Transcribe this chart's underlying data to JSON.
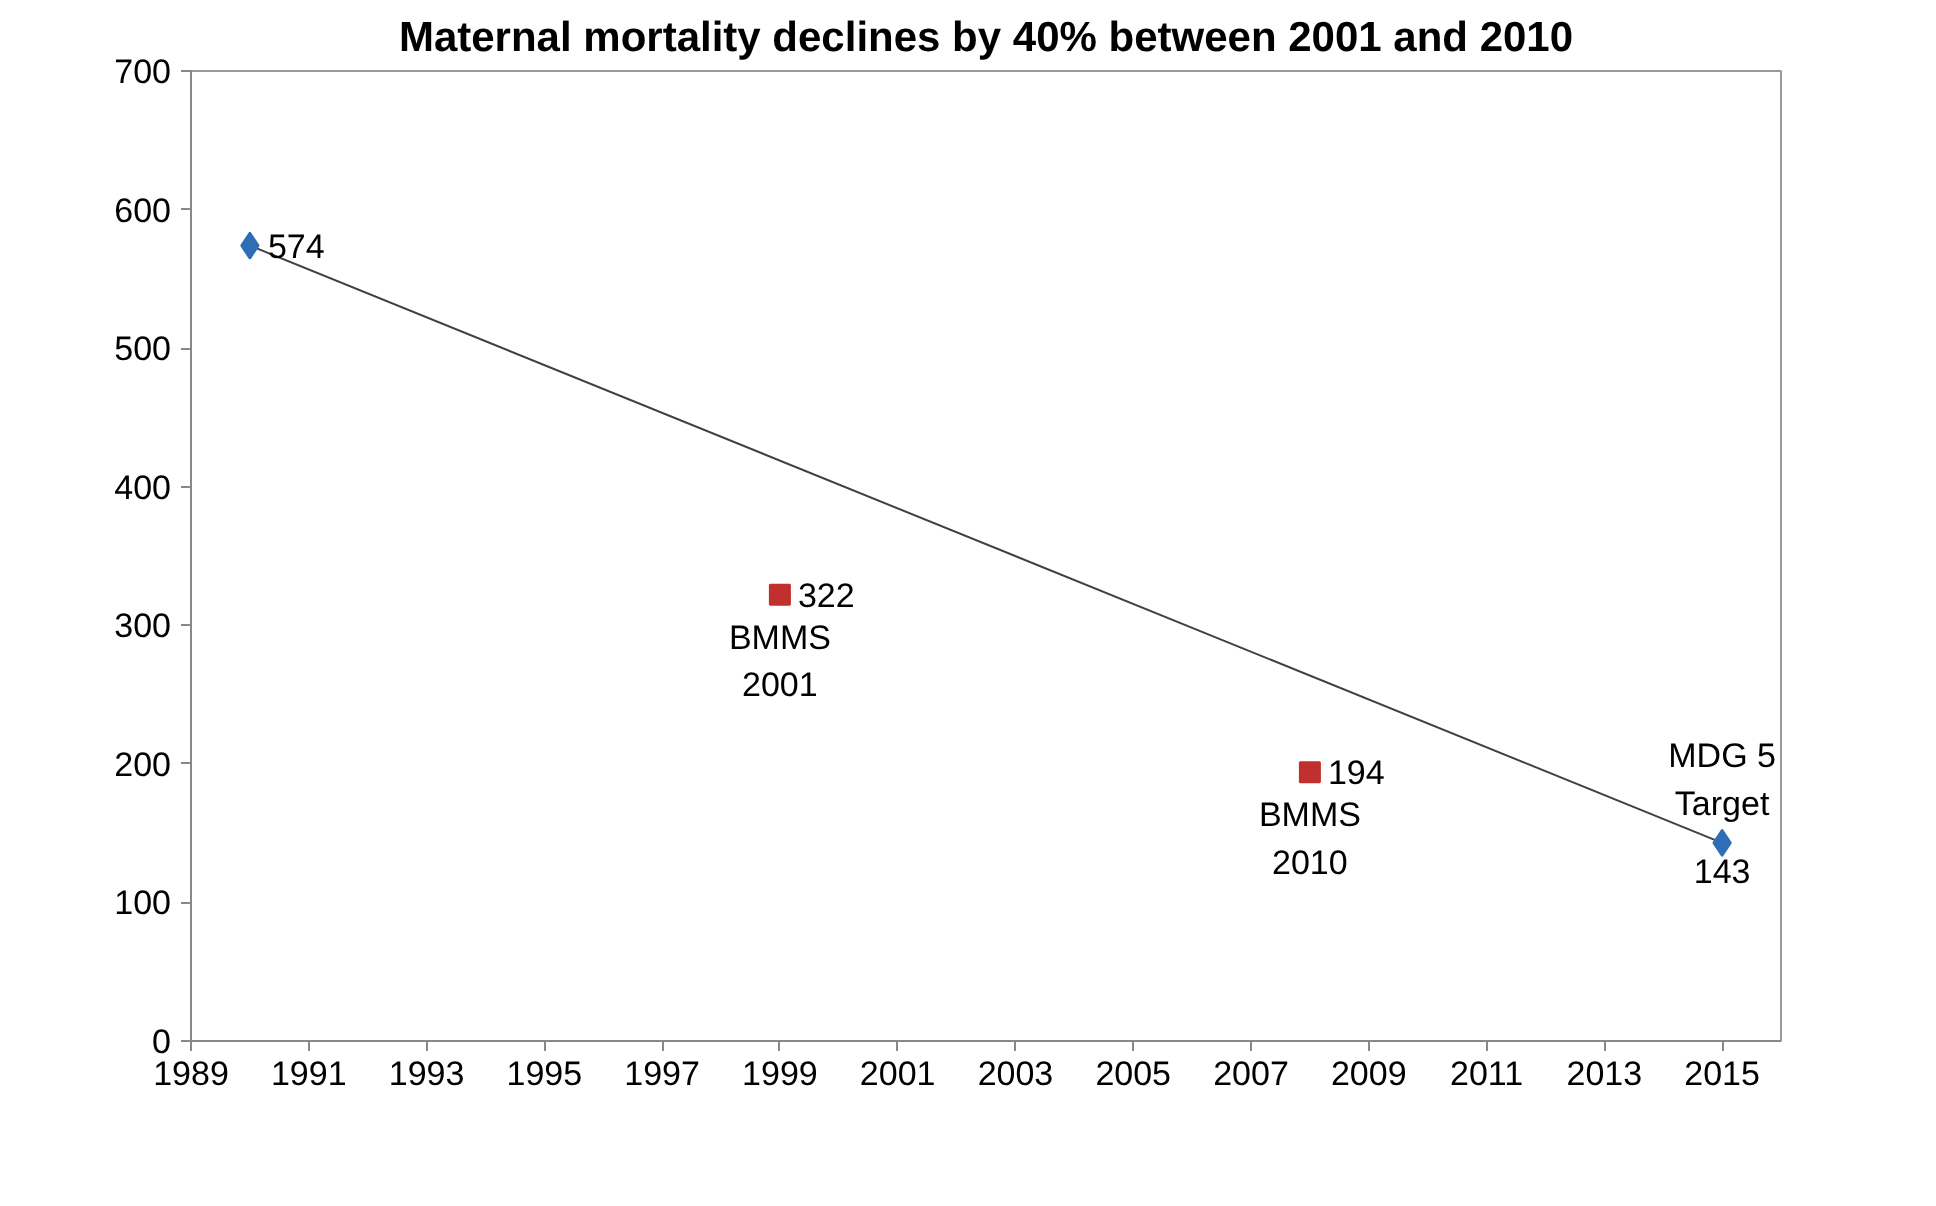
{
  "chart_data": {
    "type": "line",
    "title": "Maternal mortality declines by 40% between 2001 and 2010",
    "series": [
      {
        "color": "#404040",
        "colors": [
          "#2f6db5",
          "#2f6db5"
        ],
        "marker": "diamond",
        "x": [
          1990,
          2015
        ],
        "values": [
          574,
          143
        ]
      },
      {
        "type": "scatter",
        "color": "#c0302e",
        "marker": "square",
        "x": [
          1999,
          2008
        ],
        "values": [
          322,
          194
        ]
      }
    ],
    "data_labels": true,
    "annotations": [
      {
        "text": "BMMS\n2001",
        "x": 1999,
        "y": 322
      },
      {
        "text": "BMMS\n2010",
        "x": 2008,
        "y": 194
      },
      {
        "text": "MDG 5\nTarget",
        "x": 2015,
        "y": 143
      }
    ],
    "xlim": [
      1989,
      2016
    ],
    "xticks": [
      1989,
      1991,
      1993,
      1995,
      1997,
      1999,
      2001,
      2003,
      2005,
      2007,
      2009,
      2011,
      2013,
      2015
    ],
    "ylim": [
      0,
      700
    ],
    "yticks": [
      0,
      100,
      200,
      300,
      400,
      500,
      600,
      700
    ],
    "grid": false
  }
}
